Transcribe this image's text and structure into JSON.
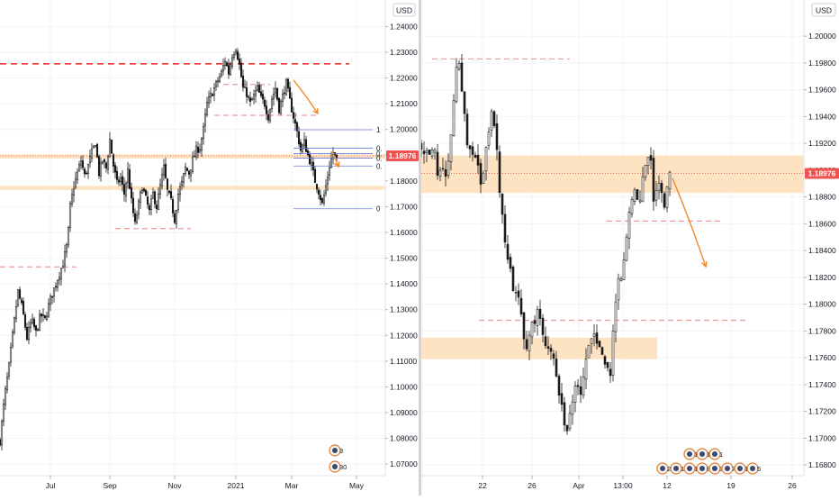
{
  "colors": {
    "candle": "#1a1a1a",
    "price_tag": "#ef5350",
    "resistance_dashed": "#e53935",
    "level_dashed": "#ef9a9a",
    "zone_fill": "#fde3c2",
    "arrow": "#ef8a2c",
    "fib": "#6a7bd8",
    "grid": "#f0f3fa"
  },
  "left": {
    "currency_badge": "USD",
    "price_tag": "1.18976",
    "fib_labels": [
      "1",
      "0.",
      "0.",
      "0.",
      "0.",
      "0"
    ],
    "event_markers": [
      "3",
      "30"
    ]
  },
  "right": {
    "currency_badge": "USD",
    "price_tag": "1.18976",
    "event_markers": [
      "20",
      "12",
      "1",
      "8",
      "3",
      "7",
      "12",
      "5",
      "11",
      "12",
      "1"
    ]
  },
  "chart_data": [
    {
      "type": "candlestick",
      "title": "",
      "xlabel": "",
      "ylabel": "",
      "ylim": [
        1.0655,
        1.2503
      ],
      "y_ticks": [
        "1.24000",
        "1.23000",
        "1.22000",
        "1.21000",
        "1.20000",
        "1.19000",
        "1.18000",
        "1.17000",
        "1.16000",
        "1.15000",
        "1.14000",
        "1.13000",
        "1.12000",
        "1.11000",
        "1.10000",
        "1.09000",
        "1.08000",
        "1.07000"
      ],
      "x_ticks": [
        "Jul",
        "Sep",
        "Nov",
        "2021",
        "Mar",
        "May"
      ],
      "current_price": 1.18976,
      "path": [
        [
          0,
          1.079
        ],
        [
          5,
          1.096
        ],
        [
          10,
          1.108
        ],
        [
          15,
          1.123
        ],
        [
          20,
          1.137
        ],
        [
          25,
          1.13
        ],
        [
          30,
          1.119
        ],
        [
          35,
          1.126
        ],
        [
          40,
          1.121
        ],
        [
          45,
          1.128
        ],
        [
          50,
          1.126
        ],
        [
          55,
          1.133
        ],
        [
          60,
          1.138
        ],
        [
          65,
          1.143
        ],
        [
          70,
          1.148
        ],
        [
          75,
          1.156
        ],
        [
          78,
          1.17
        ],
        [
          82,
          1.178
        ],
        [
          86,
          1.183
        ],
        [
          90,
          1.188
        ],
        [
          94,
          1.182
        ],
        [
          98,
          1.186
        ],
        [
          102,
          1.191
        ],
        [
          106,
          1.195
        ],
        [
          110,
          1.183
        ],
        [
          114,
          1.188
        ],
        [
          118,
          1.185
        ],
        [
          122,
          1.196
        ],
        [
          126,
          1.186
        ],
        [
          130,
          1.179
        ],
        [
          134,
          1.181
        ],
        [
          138,
          1.175
        ],
        [
          142,
          1.184
        ],
        [
          146,
          1.172
        ],
        [
          150,
          1.163
        ],
        [
          154,
          1.171
        ],
        [
          158,
          1.178
        ],
        [
          162,
          1.173
        ],
        [
          166,
          1.168
        ],
        [
          170,
          1.175
        ],
        [
          174,
          1.17
        ],
        [
          178,
          1.178
        ],
        [
          182,
          1.185
        ],
        [
          186,
          1.176
        ],
        [
          190,
          1.172
        ],
        [
          194,
          1.165
        ],
        [
          198,
          1.175
        ],
        [
          202,
          1.179
        ],
        [
          206,
          1.185
        ],
        [
          210,
          1.183
        ],
        [
          214,
          1.188
        ],
        [
          218,
          1.192
        ],
        [
          222,
          1.193
        ],
        [
          226,
          1.2
        ],
        [
          230,
          1.21
        ],
        [
          234,
          1.213
        ],
        [
          238,
          1.216
        ],
        [
          242,
          1.219
        ],
        [
          246,
          1.222
        ],
        [
          250,
          1.227
        ],
        [
          254,
          1.222
        ],
        [
          258,
          1.229
        ],
        [
          262,
          1.232
        ],
        [
          266,
          1.225
        ],
        [
          270,
          1.216
        ],
        [
          274,
          1.214
        ],
        [
          278,
          1.21
        ],
        [
          282,
          1.213
        ],
        [
          286,
          1.216
        ],
        [
          290,
          1.212
        ],
        [
          294,
          1.21
        ],
        [
          298,
          1.205
        ],
        [
          302,
          1.212
        ],
        [
          306,
          1.216
        ],
        [
          310,
          1.208
        ],
        [
          314,
          1.213
        ],
        [
          318,
          1.218
        ],
        [
          322,
          1.211
        ],
        [
          326,
          1.205
        ],
        [
          330,
          1.199
        ],
        [
          334,
          1.192
        ],
        [
          338,
          1.195
        ],
        [
          342,
          1.19
        ],
        [
          346,
          1.186
        ],
        [
          350,
          1.18
        ],
        [
          354,
          1.176
        ],
        [
          358,
          1.171
        ],
        [
          362,
          1.178
        ],
        [
          366,
          1.186
        ],
        [
          370,
          1.191
        ],
        [
          374,
          1.188
        ]
      ],
      "levels": [
        {
          "price": 1.2255,
          "style": "resistance"
        },
        {
          "price": 1.1895,
          "style": "zone",
          "height": 0.0016
        },
        {
          "price": 1.1773,
          "style": "zone",
          "height": 0.0016
        },
        {
          "price": 1.1466,
          "style": "dashed",
          "x_range": [
            0,
            85
          ]
        },
        {
          "price": 1.1615,
          "style": "dashed",
          "x_range": [
            128,
            212
          ]
        },
        {
          "price": 1.2175,
          "style": "dashed",
          "x_range": [
            248,
            300
          ]
        },
        {
          "price": 1.2055,
          "style": "dashed",
          "x_range": [
            238,
            330
          ]
        },
        {
          "price": 1.2055,
          "style": "dashed",
          "x_range": [
            335,
            352
          ]
        }
      ],
      "fib_levels": [
        1.1999,
        1.1927,
        1.1906,
        1.1889,
        1.1858,
        1.1692
      ],
      "arrows": [
        {
          "from": [
            326,
            1.2192
          ],
          "to": [
            353,
            1.2062
          ]
        },
        {
          "from": [
            369,
            1.1915
          ],
          "to": [
            376,
            1.1855
          ]
        }
      ]
    },
    {
      "type": "candlestick",
      "title": "",
      "xlabel": "",
      "ylabel": "",
      "ylim": [
        1.1672,
        1.2027
      ],
      "y_ticks": [
        "1.20000",
        "1.19800",
        "1.19600",
        "1.19400",
        "1.19200",
        "1.19000",
        "1.18800",
        "1.18600",
        "1.18400",
        "1.18200",
        "1.18000",
        "1.17800",
        "1.17600",
        "1.17400",
        "1.17200",
        "1.17000",
        "1.16800"
      ],
      "x_ticks": [
        "22",
        "26",
        "Apr",
        "13:00",
        "12",
        "19",
        "26"
      ],
      "current_price": 1.18976,
      "path": [
        [
          0,
          1.192
        ],
        [
          8,
          1.1908
        ],
        [
          14,
          1.1915
        ],
        [
          18,
          1.19
        ],
        [
          22,
          1.1895
        ],
        [
          26,
          1.1898
        ],
        [
          30,
          1.1905
        ],
        [
          34,
          1.1935
        ],
        [
          38,
          1.1975
        ],
        [
          42,
          1.1982
        ],
        [
          46,
          1.1955
        ],
        [
          50,
          1.1925
        ],
        [
          54,
          1.1918
        ],
        [
          58,
          1.1905
        ],
        [
          62,
          1.191
        ],
        [
          66,
          1.1885
        ],
        [
          70,
          1.19
        ],
        [
          74,
          1.1928
        ],
        [
          78,
          1.194
        ],
        [
          82,
          1.1935
        ],
        [
          86,
          1.1895
        ],
        [
          90,
          1.1865
        ],
        [
          94,
          1.184
        ],
        [
          98,
          1.1828
        ],
        [
          102,
          1.181
        ],
        [
          106,
          1.1812
        ],
        [
          110,
          1.1795
        ],
        [
          114,
          1.1775
        ],
        [
          118,
          1.1765
        ],
        [
          122,
          1.1785
        ],
        [
          126,
          1.179
        ],
        [
          130,
          1.1795
        ],
        [
          134,
          1.1778
        ],
        [
          138,
          1.177
        ],
        [
          142,
          1.1763
        ],
        [
          146,
          1.1768
        ],
        [
          150,
          1.175
        ],
        [
          154,
          1.173
        ],
        [
          158,
          1.1712
        ],
        [
          162,
          1.1708
        ],
        [
          166,
          1.1718
        ],
        [
          170,
          1.1735
        ],
        [
          174,
          1.174
        ],
        [
          178,
          1.1735
        ],
        [
          182,
          1.1752
        ],
        [
          186,
          1.1765
        ],
        [
          190,
          1.1775
        ],
        [
          194,
          1.1772
        ],
        [
          198,
          1.1768
        ],
        [
          202,
          1.176
        ],
        [
          206,
          1.1752
        ],
        [
          210,
          1.1745
        ],
        [
          214,
          1.179
        ],
        [
          218,
          1.1815
        ],
        [
          222,
          1.1822
        ],
        [
          226,
          1.184
        ],
        [
          230,
          1.1868
        ],
        [
          234,
          1.1878
        ],
        [
          238,
          1.1885
        ],
        [
          242,
          1.1872
        ],
        [
          246,
          1.1892
        ],
        [
          250,
          1.1908
        ],
        [
          254,
          1.1915
        ],
        [
          258,
          1.1875
        ],
        [
          262,
          1.1893
        ],
        [
          266,
          1.1885
        ],
        [
          270,
          1.187
        ],
        [
          274,
          1.1895
        ],
        [
          278,
          1.1898
        ]
      ],
      "levels": [
        {
          "price": 1.1983,
          "style": "dashed",
          "x_range": [
            12,
            165
          ]
        },
        {
          "price": 1.1897,
          "style": "zone",
          "height": 0.0028
        },
        {
          "price": 1.1862,
          "style": "dashed",
          "x_range": [
            206,
            332
          ]
        },
        {
          "price": 1.1788,
          "style": "dashed",
          "x_range": [
            64,
            362
          ]
        },
        {
          "price": 1.1767,
          "style": "zone",
          "height": 0.0016,
          "x_range": [
            0,
            262
          ]
        }
      ],
      "arrows": [
        {
          "from": [
            279,
            1.1894
          ],
          "to": [
            316,
            1.1828
          ]
        }
      ]
    }
  ]
}
